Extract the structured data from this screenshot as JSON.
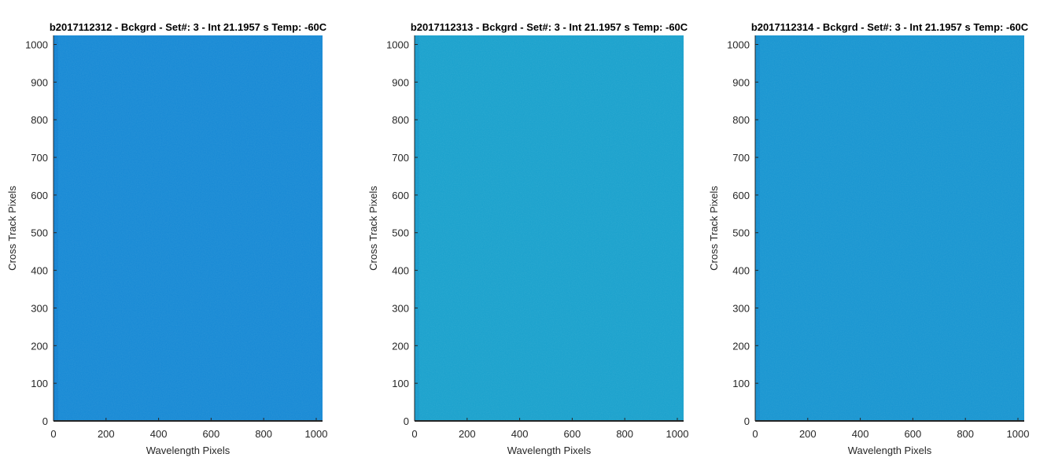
{
  "chart_data": [
    {
      "type": "heatmap",
      "title": "b2017112312 - Bckgrd - Set#: 3 - Int 21.1957 s Temp: -60C",
      "xlabel": "Wavelength Pixels",
      "ylabel": "Cross Track Pixels",
      "xlim": [
        0,
        1024
      ],
      "ylim": [
        0,
        1024
      ],
      "xticks": [
        0,
        200,
        400,
        600,
        800,
        1000
      ],
      "yticks": [
        0,
        100,
        200,
        300,
        400,
        500,
        600,
        700,
        800,
        900,
        1000
      ],
      "fill_color": "#1488d4",
      "edge_color": "#0f7fcf",
      "grid": false
    },
    {
      "type": "heatmap",
      "title": "b2017112313 - Bckgrd - Set#: 3 - Int 21.1957 s Temp: -60C",
      "xlabel": "Wavelength Pixels",
      "ylabel": "Cross Track Pixels",
      "xlim": [
        0,
        1024
      ],
      "ylim": [
        0,
        1024
      ],
      "xticks": [
        0,
        200,
        400,
        600,
        800,
        1000
      ],
      "yticks": [
        0,
        100,
        200,
        300,
        400,
        500,
        600,
        700,
        800,
        900,
        1000
      ],
      "fill_color": "#17a0cc",
      "edge_color": "#1596c9",
      "grid": false
    },
    {
      "type": "heatmap",
      "title": "b2017112314 - Bckgrd - Set#: 3 - Int 21.1957 s Temp: -60C",
      "xlabel": "Wavelength Pixels",
      "ylabel": "Cross Track Pixels",
      "xlim": [
        0,
        1024
      ],
      "ylim": [
        0,
        1024
      ],
      "xticks": [
        0,
        200,
        400,
        600,
        800,
        1000
      ],
      "yticks": [
        0,
        100,
        200,
        300,
        400,
        500,
        600,
        700,
        800,
        900,
        1000
      ],
      "fill_color": "#1594d0",
      "edge_color": "#1189cc",
      "grid": false
    }
  ]
}
